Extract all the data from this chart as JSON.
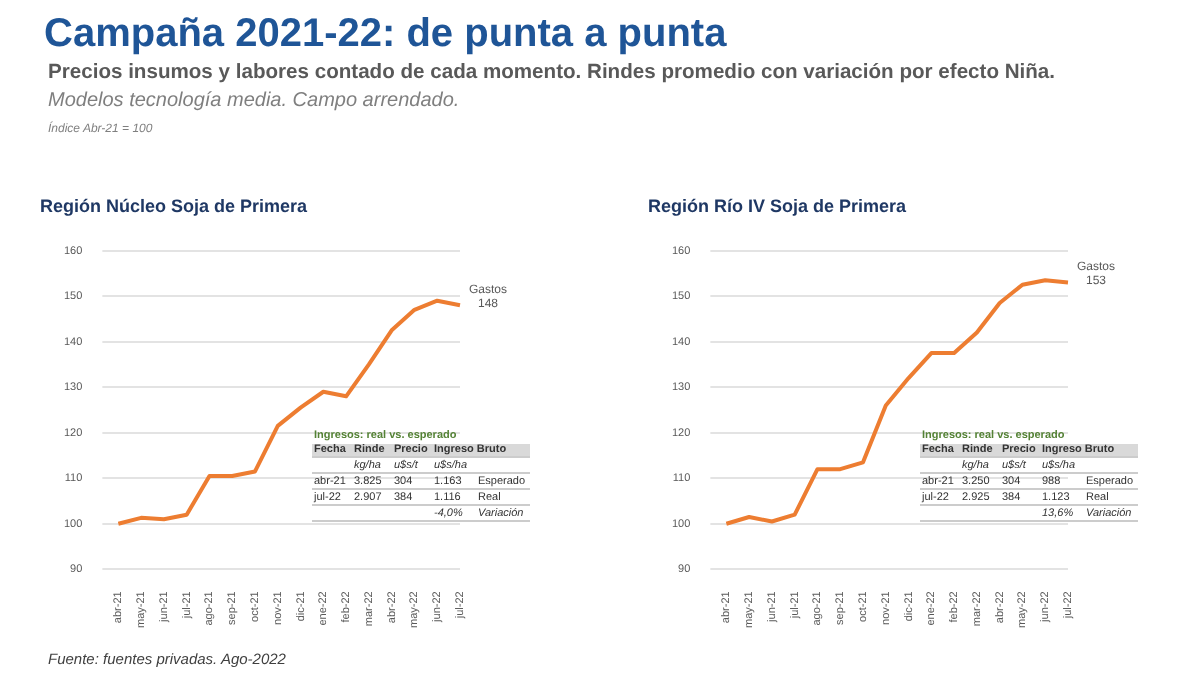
{
  "chart_data": [
    {
      "type": "other",
      "title": "Campaña 2021-22: de punta a punta",
      "subtitle": "Precios insumos y labores contado de cada momento. Rindes promedio con variación por efecto Niña.",
      "annotations": [
        "Modelos tecnología media. Campo arrendado.",
        "Índice Abr-21 = 100",
        "Fuente: fuentes privadas. Ago-2022"
      ]
    },
    {
      "type": "line",
      "title": "Región Núcleo Soja de Primera",
      "categories": [
        "abr-21",
        "may-21",
        "jun-21",
        "jul-21",
        "ago-21",
        "sep-21",
        "oct-21",
        "nov-21",
        "dic-21",
        "ene-22",
        "feb-22",
        "mar-22",
        "abr-22",
        "may-22",
        "jun-22",
        "jul-22"
      ],
      "series": [
        {
          "color": "#ed7d31",
          "values": [
            100,
            101.3,
            101,
            102,
            110.5,
            110.5,
            111.5,
            121.5,
            125.5,
            129,
            128,
            135,
            142.5,
            147,
            149,
            148
          ]
        }
      ],
      "ylim": [
        90,
        160
      ],
      "yticks": [
        90,
        100,
        110,
        120,
        130,
        140,
        150,
        160
      ],
      "grid": "y",
      "legend": false,
      "marker": "none",
      "annotations": [
        {
          "text": "Gastos 148",
          "x": "jul-22",
          "y": 148
        },
        "Ingresos: real vs. esperado",
        "Fecha",
        "Rinde",
        "Precio",
        "Ingreso Bruto",
        "kg/ha",
        "u$s/t",
        "u$s/ha",
        "abr-21",
        "3.825",
        "304",
        "1.163",
        "Esperado",
        "jul-22",
        "2.907",
        "384",
        "1.116",
        "Real",
        "-4,0%",
        "Variación"
      ]
    },
    {
      "type": "line",
      "title": "Región Río IV Soja de Primera",
      "categories": [
        "abr-21",
        "may-21",
        "jun-21",
        "jul-21",
        "ago-21",
        "sep-21",
        "oct-21",
        "nov-21",
        "dic-21",
        "ene-22",
        "feb-22",
        "mar-22",
        "abr-22",
        "may-22",
        "jun-22",
        "jul-22"
      ],
      "series": [
        {
          "color": "#ed7d31",
          "values": [
            100,
            101.5,
            100.5,
            102,
            112,
            112,
            113.5,
            126,
            132,
            137.5,
            137.5,
            142,
            148.5,
            152.5,
            153.5,
            153
          ]
        }
      ],
      "ylim": [
        90,
        160
      ],
      "yticks": [
        90,
        100,
        110,
        120,
        130,
        140,
        150,
        160
      ],
      "grid": "y",
      "legend": false,
      "marker": "none",
      "annotations": [
        {
          "text": "Gastos 153",
          "x": "jul-22",
          "y": 153
        },
        "Ingresos: real vs. esperado",
        "Fecha",
        "Rinde",
        "Precio",
        "Ingreso Bruto",
        "kg/ha",
        "u$s/t",
        "u$s/ha",
        "abr-21",
        "3.250",
        "304",
        "988",
        "Esperado",
        "jul-22",
        "2.925",
        "384",
        "1.123",
        "Real",
        "13,6%",
        "Variación"
      ]
    }
  ]
}
